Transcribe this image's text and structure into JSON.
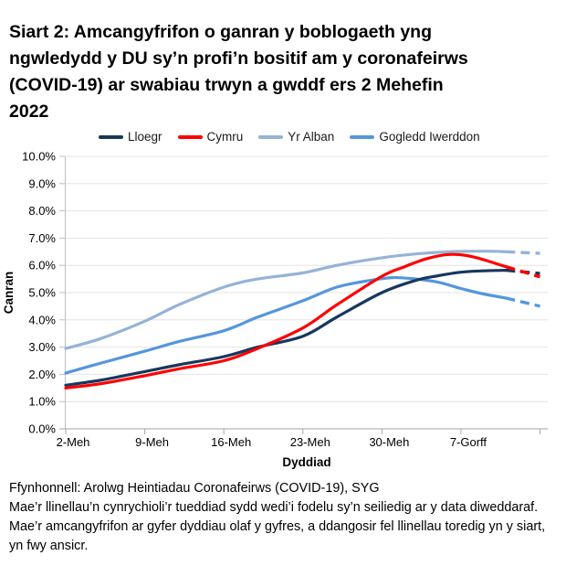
{
  "title": "Siart 2: Amcangyfrifon o ganran y boblogaeth yng ngwledydd y DU sy’n profi’n bositif am y coronafeirws (COVID-19) ar swabiau trwyn a gwddf ers 2 Mehefin 2022",
  "colors": {
    "lloegr": "#17375E",
    "cymru": "#FF0000",
    "yr_alban": "#95B3D7",
    "gogledd_iwerddon": "#5596DC",
    "gridline": "#E4E4E4",
    "axis": "#A6A6A6",
    "tick": "#BFBFBF"
  },
  "chart_data": {
    "type": "line",
    "x_axis": {
      "label": "Dyddiad",
      "tick_labels": [
        "2-Meh",
        "9-Meh",
        "16-Meh",
        "23-Meh",
        "30-Meh",
        "7-Gorff"
      ],
      "tick_days": [
        0,
        7,
        14,
        21,
        28,
        35
      ],
      "extra_tick_days": [
        42
      ],
      "x_unit": "diwrnodau ers 2 Mehefin 2022",
      "x_range_days": [
        0,
        42
      ]
    },
    "y_axis": {
      "label": "Canran",
      "min": 0,
      "max": 10,
      "tick_step": 1,
      "tick_labels": [
        "0.0%",
        "1.0%",
        "2.0%",
        "3.0%",
        "4.0%",
        "5.0%",
        "6.0%",
        "7.0%",
        "8.0%",
        "9.0%",
        "10.0%"
      ]
    },
    "legend_position": "top",
    "grid": "horizontal",
    "dashed_note": "llinellau toredig = amcangyfrifon mwy ansicr ar gyfer dyddiau olaf y gyfres",
    "series": [
      {
        "name": "Yr Alban",
        "color_key": "yr_alban",
        "solid": [
          [
            0,
            2.95
          ],
          [
            3,
            3.3
          ],
          [
            7,
            3.95
          ],
          [
            10,
            4.55
          ],
          [
            14,
            5.2
          ],
          [
            17,
            5.5
          ],
          [
            21,
            5.72
          ],
          [
            24,
            6.0
          ],
          [
            28,
            6.28
          ],
          [
            31,
            6.42
          ],
          [
            34,
            6.5
          ],
          [
            37,
            6.52
          ],
          [
            39,
            6.5
          ]
        ],
        "dashed": [
          [
            39,
            6.5
          ],
          [
            42,
            6.44
          ]
        ]
      },
      {
        "name": "Gogledd Iwerddon",
        "color_key": "gogledd_iwerddon",
        "solid": [
          [
            0,
            2.05
          ],
          [
            3,
            2.4
          ],
          [
            7,
            2.85
          ],
          [
            10,
            3.2
          ],
          [
            14,
            3.6
          ],
          [
            17,
            4.1
          ],
          [
            21,
            4.7
          ],
          [
            24,
            5.2
          ],
          [
            27,
            5.45
          ],
          [
            29,
            5.55
          ],
          [
            31,
            5.5
          ],
          [
            33,
            5.38
          ],
          [
            35,
            5.15
          ],
          [
            37,
            4.95
          ],
          [
            39,
            4.8
          ]
        ],
        "dashed": [
          [
            39,
            4.8
          ],
          [
            42,
            4.5
          ]
        ]
      },
      {
        "name": "Lloegr",
        "color_key": "lloegr",
        "solid": [
          [
            0,
            1.6
          ],
          [
            3,
            1.78
          ],
          [
            7,
            2.1
          ],
          [
            10,
            2.35
          ],
          [
            14,
            2.65
          ],
          [
            17,
            3.0
          ],
          [
            21,
            3.4
          ],
          [
            24,
            4.1
          ],
          [
            28,
            5.0
          ],
          [
            31,
            5.45
          ],
          [
            33,
            5.62
          ],
          [
            35,
            5.75
          ],
          [
            37,
            5.8
          ],
          [
            39,
            5.82
          ]
        ],
        "dashed": [
          [
            39,
            5.82
          ],
          [
            42,
            5.7
          ]
        ]
      },
      {
        "name": "Cymru",
        "color_key": "cymru",
        "solid": [
          [
            0,
            1.5
          ],
          [
            3,
            1.65
          ],
          [
            7,
            1.95
          ],
          [
            10,
            2.2
          ],
          [
            14,
            2.5
          ],
          [
            17,
            2.95
          ],
          [
            21,
            3.7
          ],
          [
            24,
            4.55
          ],
          [
            28,
            5.6
          ],
          [
            30,
            5.95
          ],
          [
            32,
            6.25
          ],
          [
            34,
            6.4
          ],
          [
            36,
            6.32
          ],
          [
            39,
            5.95
          ]
        ],
        "dashed": [
          [
            39,
            5.95
          ],
          [
            42,
            5.58
          ]
        ]
      }
    ],
    "legend_order": [
      "Lloegr",
      "Cymru",
      "Yr Alban",
      "Gogledd Iwerddon"
    ]
  },
  "footer": {
    "source": "Ffynhonnell: Arolwg Heintiadau Coronafeirws (COVID-19), SYG",
    "note": "Mae’r llinellau’n cynrychioli’r tueddiad sydd wedi’i fodelu sy’n seiliedig ar y data diweddaraf. Mae’r amcangyfrifon ar gyfer dyddiau olaf y gyfres, a ddangosir fel llinellau toredig yn y siart, yn fwy ansicr."
  }
}
